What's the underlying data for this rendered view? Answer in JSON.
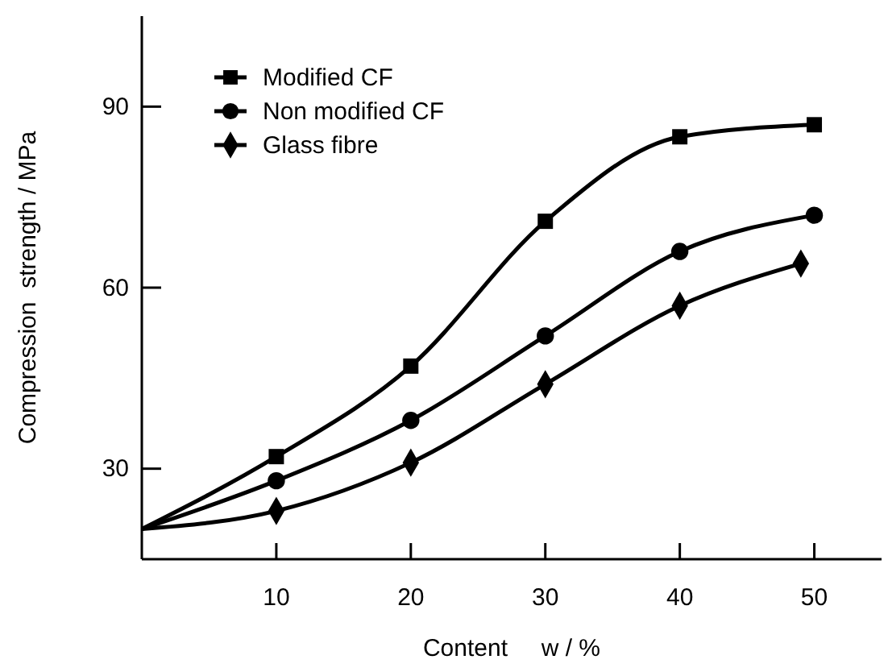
{
  "chart_data": {
    "type": "line",
    "xlabel": "Content     w / %",
    "ylabel": "Compression  strength / MPa",
    "xlim": [
      0,
      55
    ],
    "xticks": [
      10,
      20,
      30,
      40,
      50
    ],
    "ylim": [
      15,
      105
    ],
    "yticks": [
      30,
      60,
      90
    ],
    "grid": false,
    "legend": "top left",
    "line_style": "solid",
    "series": [
      {
        "name": "Modified CF",
        "color": "#000000",
        "marker": "square",
        "x": [
          0,
          10,
          20,
          30,
          40,
          50
        ],
        "values": [
          20,
          32,
          47,
          71,
          85,
          87
        ]
      },
      {
        "name": "Non modified CF",
        "color": "#000000",
        "marker": "circle",
        "x": [
          0,
          10,
          20,
          30,
          40,
          50
        ],
        "values": [
          20,
          28,
          38,
          52,
          66,
          72
        ]
      },
      {
        "name": "Glass fibre",
        "color": "#000000",
        "marker": "diamond",
        "x": [
          0,
          10,
          20,
          30,
          40,
          49
        ],
        "values": [
          20,
          23,
          31,
          44,
          57,
          64
        ]
      }
    ]
  }
}
